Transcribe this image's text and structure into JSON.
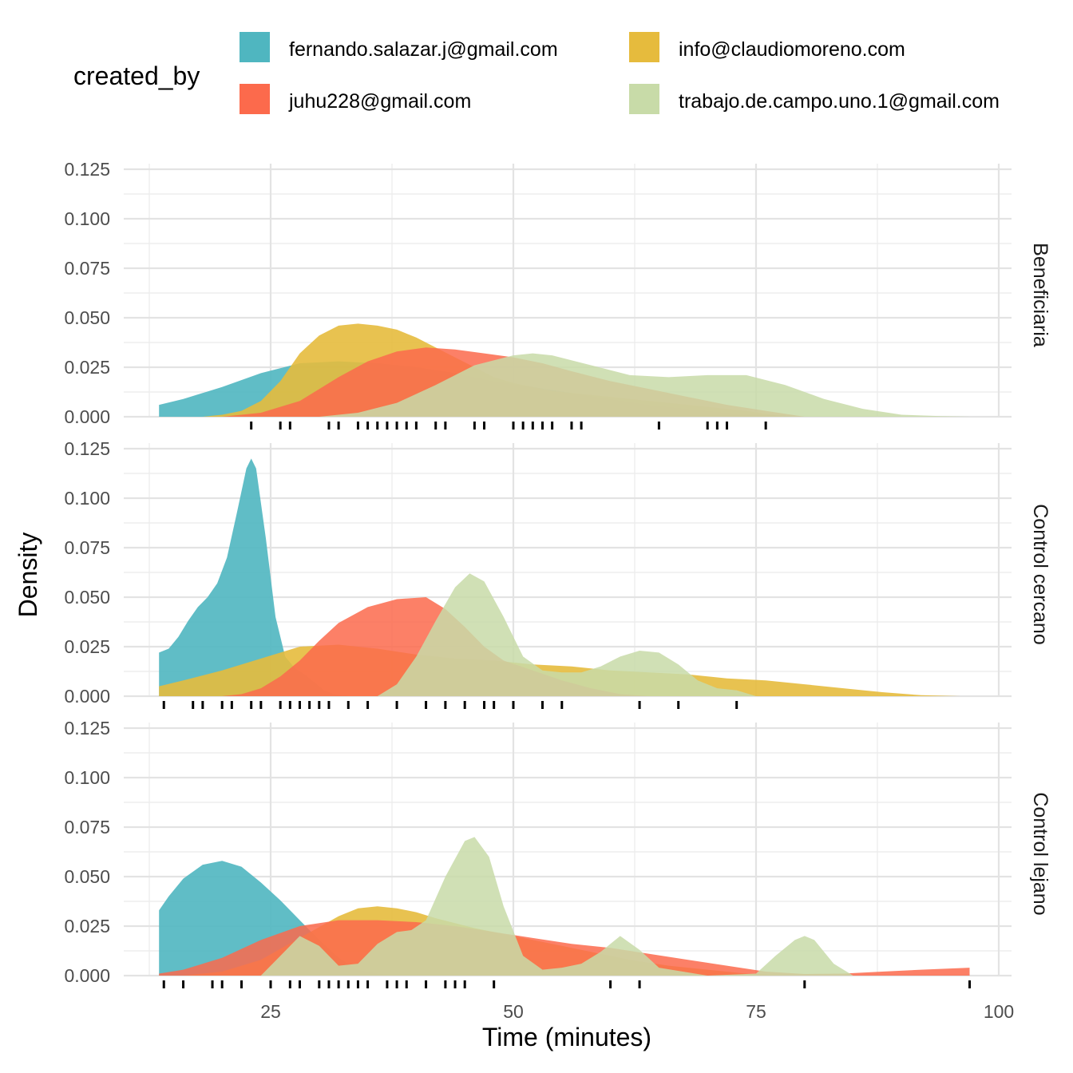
{
  "chart_data": {
    "type": "area",
    "xlabel": "Time (minutes)",
    "ylabel": "Density",
    "xlim": [
      12,
      100
    ],
    "ylim": [
      0,
      0.125
    ],
    "x_ticks": [
      25,
      50,
      75,
      100
    ],
    "y_ticks": [
      0,
      0.025,
      0.05,
      0.075,
      0.1,
      0.125
    ],
    "y_tick_labels": [
      "0.000",
      "0.025",
      "0.050",
      "0.075",
      "0.100",
      "0.125"
    ],
    "grid": true,
    "legend": {
      "title": "created_by",
      "placement": "top",
      "entries": [
        {
          "name": "fernando.salazar.j@gmail.com",
          "color": "#4fb6c0"
        },
        {
          "name": "info@claudiomoreno.com",
          "color": "#e6bb3d"
        },
        {
          "name": "juhu228@gmail.com",
          "color": "#fc6a4c"
        },
        {
          "name": "trabajo.de.campo.uno.1@gmail.com",
          "color": "#c8dba8"
        }
      ]
    },
    "panels": [
      {
        "label": "Beneficiaria",
        "rug": [
          23,
          26,
          27,
          31,
          32,
          34,
          35,
          36,
          37,
          38,
          39,
          40,
          42,
          43,
          46,
          47,
          50,
          51,
          52,
          53,
          54,
          56,
          57,
          65,
          70,
          71,
          72,
          76
        ],
        "series": [
          {
            "name": "fernando.salazar.j@gmail.com",
            "color": "#4fb6c0",
            "opacity": 0.9,
            "x": [
              13.5,
              16,
              20,
              24,
              28,
              32,
              36,
              40,
              44,
              48,
              52,
              56,
              60,
              64,
              68,
              72,
              76,
              80
            ],
            "y": [
              0.006,
              0.009,
              0.015,
              0.022,
              0.027,
              0.028,
              0.027,
              0.025,
              0.022,
              0.018,
              0.015,
              0.012,
              0.009,
              0.006,
              0.004,
              0.002,
              0.001,
              0
            ]
          },
          {
            "name": "info@claudiomoreno.com",
            "color": "#e6bb3d",
            "opacity": 0.9,
            "x": [
              18,
              20,
              22,
              24,
              26,
              28,
              30,
              32,
              34,
              36,
              38,
              40,
              42,
              44,
              46,
              48,
              50,
              52,
              54,
              58,
              62,
              66,
              70,
              74,
              78
            ],
            "y": [
              0,
              0.001,
              0.003,
              0.008,
              0.018,
              0.032,
              0.041,
              0.046,
              0.047,
              0.046,
              0.044,
              0.04,
              0.035,
              0.03,
              0.025,
              0.02,
              0.017,
              0.015,
              0.013,
              0.011,
              0.009,
              0.007,
              0.005,
              0.003,
              0
            ]
          },
          {
            "name": "juhu228@gmail.com",
            "color": "#fc6a4c",
            "opacity": 0.85,
            "x": [
              20,
              24,
              28,
              32,
              35,
              38,
              41,
              44,
              47,
              50,
              53,
              56,
              60,
              64,
              68,
              72,
              76,
              80
            ],
            "y": [
              0,
              0.002,
              0.008,
              0.02,
              0.028,
              0.033,
              0.035,
              0.034,
              0.032,
              0.03,
              0.027,
              0.023,
              0.018,
              0.014,
              0.01,
              0.006,
              0.003,
              0
            ]
          },
          {
            "name": "trabajo.de.campo.uno.1@gmail.com",
            "color": "#c8dba8",
            "opacity": 0.85,
            "x": [
              30,
              34,
              38,
              42,
              46,
              50,
              52,
              54,
              58,
              62,
              66,
              70,
              74,
              78,
              82,
              86,
              90,
              94,
              97
            ],
            "y": [
              0,
              0.002,
              0.007,
              0.016,
              0.026,
              0.031,
              0.032,
              0.031,
              0.026,
              0.021,
              0.02,
              0.021,
              0.021,
              0.016,
              0.009,
              0.004,
              0.001,
              0.0003,
              0
            ]
          }
        ]
      },
      {
        "label": "Control cercano",
        "rug": [
          14,
          17,
          18,
          20,
          21,
          23,
          24,
          26,
          27,
          28,
          29,
          30,
          31,
          33,
          35,
          38,
          41,
          43,
          45,
          47,
          48,
          50,
          53,
          55,
          63,
          67,
          73
        ],
        "series": [
          {
            "name": "fernando.salazar.j@gmail.com",
            "color": "#4fb6c0",
            "opacity": 0.9,
            "x": [
              13.5,
              14.5,
              15.5,
              16.5,
              17.5,
              18.5,
              19.5,
              20.5,
              21.5,
              22.5,
              23,
              23.5,
              24.5,
              25.5,
              26.5,
              27.5,
              28.5,
              29.5,
              30.5,
              31.5,
              33
            ],
            "y": [
              0.022,
              0.024,
              0.03,
              0.038,
              0.045,
              0.05,
              0.057,
              0.07,
              0.092,
              0.115,
              0.12,
              0.115,
              0.08,
              0.04,
              0.02,
              0.014,
              0.011,
              0.007,
              0.003,
              0.001,
              0
            ]
          },
          {
            "name": "info@claudiomoreno.com",
            "color": "#e6bb3d",
            "opacity": 0.9,
            "x": [
              13.5,
              16,
              20,
              24,
              28,
              32,
              36,
              40,
              44,
              48,
              52,
              56,
              60,
              64,
              68,
              72,
              76,
              80,
              84,
              88,
              92,
              96
            ],
            "y": [
              0.005,
              0.008,
              0.013,
              0.019,
              0.025,
              0.026,
              0.024,
              0.021,
              0.019,
              0.018,
              0.016,
              0.015,
              0.013,
              0.012,
              0.011,
              0.009,
              0.008,
              0.006,
              0.004,
              0.002,
              0.0005,
              0
            ]
          },
          {
            "name": "juhu228@gmail.com",
            "color": "#fc6a4c",
            "opacity": 0.85,
            "x": [
              20,
              22,
              24,
              26,
              28,
              30,
              32,
              35,
              38,
              41,
              43,
              45,
              47,
              49,
              52,
              55,
              58,
              61,
              64
            ],
            "y": [
              0,
              0.001,
              0.004,
              0.01,
              0.018,
              0.028,
              0.037,
              0.045,
              0.049,
              0.05,
              0.044,
              0.035,
              0.025,
              0.018,
              0.013,
              0.008,
              0.004,
              0.001,
              0
            ]
          },
          {
            "name": "trabajo.de.campo.uno.1@gmail.com",
            "color": "#c8dba8",
            "opacity": 0.85,
            "x": [
              36,
              38,
              40,
              42,
              44,
              45.5,
              47,
              49,
              51,
              53,
              55,
              57,
              59,
              61,
              63,
              65,
              67,
              69,
              71,
              73,
              75
            ],
            "y": [
              0,
              0.006,
              0.02,
              0.038,
              0.055,
              0.062,
              0.058,
              0.04,
              0.02,
              0.013,
              0.012,
              0.012,
              0.015,
              0.02,
              0.023,
              0.022,
              0.016,
              0.008,
              0.004,
              0.003,
              0
            ]
          }
        ]
      },
      {
        "label": "Control lejano",
        "rug": [
          14,
          16,
          19,
          20,
          22,
          25,
          27,
          28,
          30,
          31,
          32,
          33,
          34,
          35,
          37,
          38,
          39,
          41,
          43,
          44,
          45,
          48,
          60,
          63,
          80,
          97
        ],
        "series": [
          {
            "name": "fernando.salazar.j@gmail.com",
            "color": "#4fb6c0",
            "opacity": 0.9,
            "x": [
              13.5,
              14.5,
              16,
              18,
              20,
              22,
              24,
              26,
              28,
              30,
              32,
              34,
              36,
              38
            ],
            "y": [
              0.033,
              0.04,
              0.049,
              0.056,
              0.058,
              0.055,
              0.047,
              0.038,
              0.028,
              0.018,
              0.009,
              0.003,
              0.001,
              0
            ]
          },
          {
            "name": "info@claudiomoreno.com",
            "color": "#e6bb3d",
            "opacity": 0.9,
            "x": [
              16,
              20,
              24,
              28,
              32,
              34,
              36,
              38,
              40,
              42,
              46,
              50,
              54,
              58,
              62,
              66,
              70,
              74,
              78
            ],
            "y": [
              0,
              0.002,
              0.008,
              0.019,
              0.03,
              0.034,
              0.035,
              0.034,
              0.032,
              0.029,
              0.024,
              0.02,
              0.016,
              0.012,
              0.008,
              0.005,
              0.003,
              0.001,
              0
            ]
          },
          {
            "name": "juhu228@gmail.com",
            "color": "#fc6a4c",
            "opacity": 0.85,
            "x": [
              13.5,
              16,
              20,
              24,
              28,
              32,
              36,
              40,
              44,
              48,
              52,
              56,
              60,
              64,
              68,
              72,
              76,
              80,
              84,
              88,
              92,
              97
            ],
            "y": [
              0.001,
              0.003,
              0.009,
              0.018,
              0.025,
              0.028,
              0.028,
              0.027,
              0.025,
              0.022,
              0.019,
              0.016,
              0.014,
              0.011,
              0.008,
              0.005,
              0.002,
              0.0008,
              0.001,
              0.002,
              0.003,
              0.004
            ]
          },
          {
            "name": "trabajo.de.campo.uno.1@gmail.com",
            "color": "#c8dba8",
            "opacity": 0.85,
            "x": [
              24,
              26,
              28,
              30,
              32,
              34,
              36,
              38,
              39.5,
              41,
              43,
              45,
              46,
              47.5,
              49,
              51,
              53,
              55,
              57,
              59,
              61,
              63,
              65,
              70,
              75,
              77,
              79,
              80,
              81,
              83,
              85
            ],
            "y": [
              0,
              0.01,
              0.02,
              0.015,
              0.005,
              0.006,
              0.016,
              0.022,
              0.023,
              0.028,
              0.05,
              0.068,
              0.07,
              0.06,
              0.035,
              0.01,
              0.003,
              0.004,
              0.006,
              0.012,
              0.02,
              0.013,
              0.004,
              0,
              0.001,
              0.01,
              0.018,
              0.02,
              0.018,
              0.006,
              0
            ]
          }
        ]
      }
    ]
  }
}
